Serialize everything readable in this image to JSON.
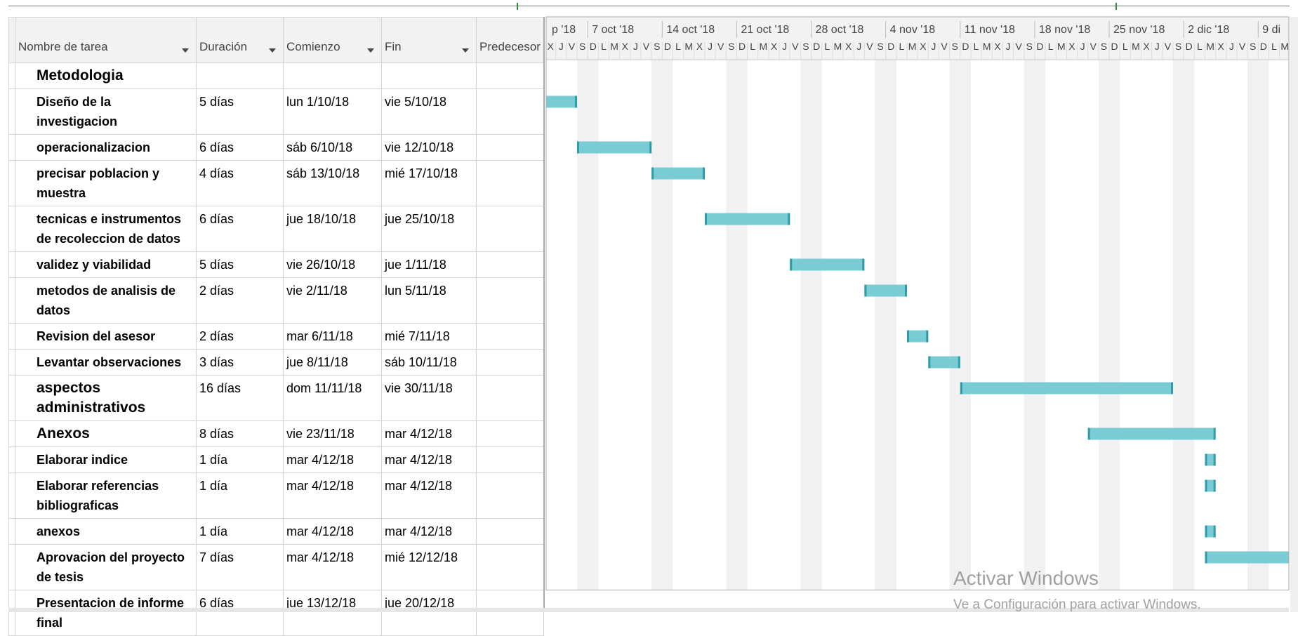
{
  "columns": [
    "Nombre de tarea",
    "Duración",
    "Comienzo",
    "Fin",
    "Predecesor"
  ],
  "tasks": [
    {
      "name": "Metodologia",
      "summary": true
    },
    {
      "name": "Diseño de la investigacion",
      "duration": "5 días",
      "start": "lun 1/10/18",
      "end": "vie 5/10/18"
    },
    {
      "name": "operacionalizacion",
      "duration": "6 días",
      "start": "sáb 6/10/18",
      "end": "vie 12/10/18"
    },
    {
      "name": "precisar poblacion y muestra",
      "duration": "4 días",
      "start": "sáb 13/10/18",
      "end": "mié 17/10/18"
    },
    {
      "name": "tecnicas e instrumentos de recoleccion de datos",
      "duration": "6 días",
      "start": "jue 18/10/18",
      "end": "jue 25/10/18"
    },
    {
      "name": "validez y viabilidad",
      "duration": "5 días",
      "start": "vie 26/10/18",
      "end": "jue 1/11/18"
    },
    {
      "name": "metodos de analisis de datos",
      "duration": "2 días",
      "start": "vie 2/11/18",
      "end": "lun 5/11/18"
    },
    {
      "name": "Revision del asesor",
      "duration": "2 días",
      "start": "mar 6/11/18",
      "end": "mié 7/11/18"
    },
    {
      "name": "Levantar observaciones",
      "duration": "3 días",
      "start": "jue 8/11/18",
      "end": "sáb 10/11/18"
    },
    {
      "name": "aspectos administrativos",
      "summary": true,
      "duration": "16 días",
      "start": "dom 11/11/18",
      "end": "vie 30/11/18"
    },
    {
      "name": "Anexos",
      "summary": true,
      "duration": "8 días",
      "start": "vie 23/11/18",
      "end": "mar 4/12/18"
    },
    {
      "name": "Elaborar indice",
      "duration": "1 día",
      "start": "mar 4/12/18",
      "end": "mar 4/12/18"
    },
    {
      "name": "Elaborar referencias bibliograficas",
      "duration": "1 día",
      "start": "mar 4/12/18",
      "end": "mar 4/12/18"
    },
    {
      "name": "anexos",
      "duration": "1 día",
      "start": "mar 4/12/18",
      "end": "mar 4/12/18"
    },
    {
      "name": "Aprovacion del proyecto de tesis",
      "duration": "7 días",
      "start": "mar 4/12/18",
      "end": "mié 12/12/18"
    },
    {
      "name": "Presentacion de informe final",
      "duration": "6 días",
      "start": "jue 13/12/18",
      "end": "jue 20/12/18"
    }
  ],
  "timescale": {
    "weeks": [
      "p '18",
      "7 oct '18",
      "14 oct '18",
      "21 oct '18",
      "28 oct '18",
      "4 nov '18",
      "11 nov '18",
      "18 nov '18",
      "25 nov '18",
      "2 dic '18",
      "9 di"
    ],
    "day_letters": [
      "D",
      "L",
      "M",
      "X",
      "J",
      "V",
      "S"
    ]
  },
  "watermark": {
    "title": "Activar Windows",
    "subtitle": "Ve a Configuración para activar Windows."
  }
}
